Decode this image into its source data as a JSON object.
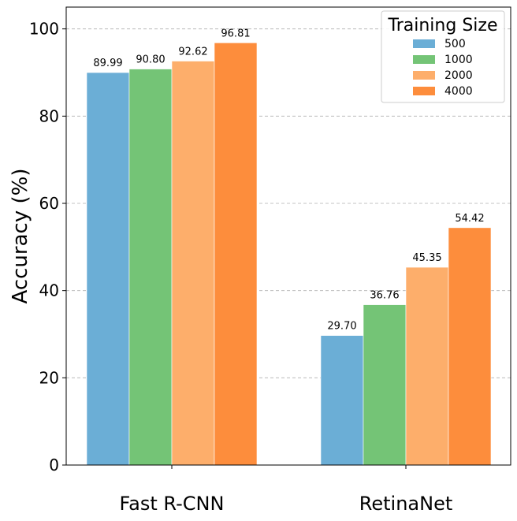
{
  "chart_data": {
    "type": "bar",
    "title": "",
    "xlabel": "",
    "ylabel": "Accuracy (%)",
    "ylim": [
      0,
      105
    ],
    "yticks": [
      0,
      20,
      40,
      60,
      80,
      100
    ],
    "grid": "horizontal dashed",
    "legend": {
      "title": "Training Size",
      "placement": "top-right"
    },
    "categories": [
      "Fast R-CNN",
      "RetinaNet"
    ],
    "series": [
      {
        "name": "500",
        "color": "#6baed6",
        "values": [
          89.99,
          29.7
        ],
        "labels": [
          "89.99",
          "29.70"
        ]
      },
      {
        "name": "1000",
        "color": "#74c476",
        "values": [
          90.8,
          36.76
        ],
        "labels": [
          "90.80",
          "36.76"
        ]
      },
      {
        "name": "2000",
        "color": "#fdae6b",
        "values": [
          92.62,
          45.35
        ],
        "labels": [
          "92.62",
          "45.35"
        ]
      },
      {
        "name": "4000",
        "color": "#fd8d3c",
        "values": [
          96.81,
          54.42
        ],
        "labels": [
          "96.81",
          "54.42"
        ]
      }
    ]
  }
}
